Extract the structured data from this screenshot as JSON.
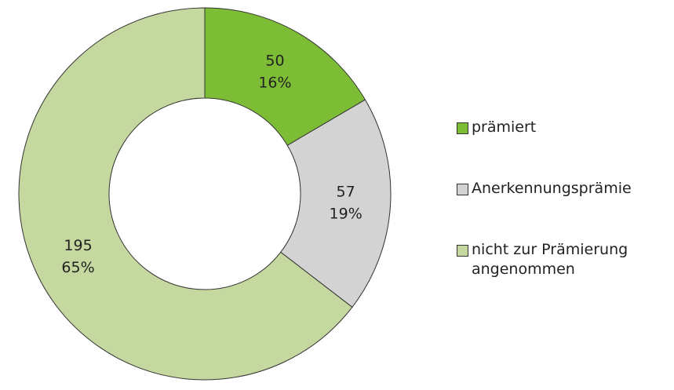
{
  "chart_data": {
    "type": "donut",
    "categories": [
      "prämiert",
      "Anerkennungsprämie",
      "nicht zur Prämierung angenommen"
    ],
    "values": [
      50,
      57,
      195
    ],
    "percent_labels": [
      "16%",
      "19%",
      "65%"
    ],
    "colors": [
      "#7cbd35",
      "#d3d3d3",
      "#c5d89f"
    ],
    "legend": "right"
  }
}
